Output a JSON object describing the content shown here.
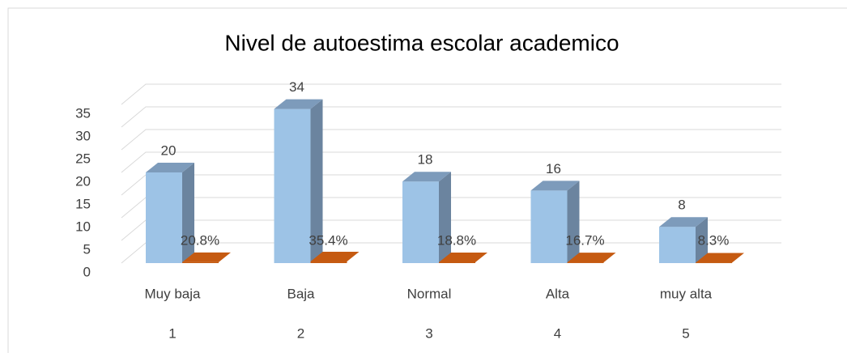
{
  "chart_data": {
    "type": "bar3d",
    "title": "Nivel de autoestima escolar academico",
    "categories": [
      "Muy baja",
      "Baja",
      "Normal",
      "Alta",
      "muy alta"
    ],
    "category_codes": [
      "1",
      "2",
      "3",
      "4",
      "5"
    ],
    "series": [
      {
        "color": "#9dc3e6",
        "values": [
          20,
          34,
          18,
          16,
          8
        ]
      },
      {
        "color": "#c55a11",
        "values": [
          0.208,
          0.354,
          0.188,
          0.167,
          0.083
        ],
        "value_labels": [
          "20.8%",
          "35.4%",
          "18.8%",
          "16.7%",
          "8.3%"
        ]
      }
    ],
    "ylim": [
      0,
      35
    ],
    "yticks": [
      0,
      5,
      10,
      15,
      20,
      25,
      30,
      35
    ],
    "grid": true
  }
}
